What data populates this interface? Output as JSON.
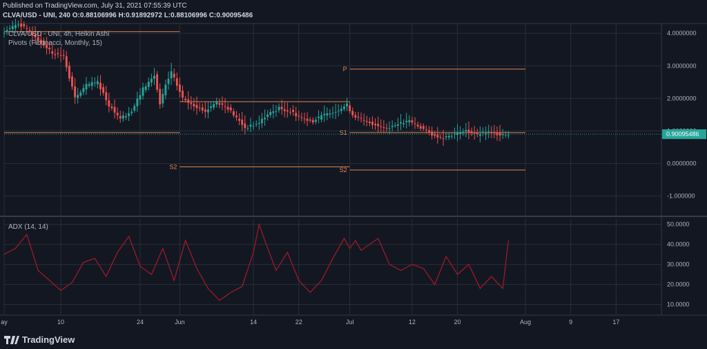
{
  "header": {
    "published": "Published on TradingView.com, July 31, 2021 07:55:39 UTC",
    "symbol_line": "CLVA/USD - UNI, 240",
    "o_label": "O:",
    "o": "0.88106996",
    "h_label": "H:",
    "h": "0.91892972",
    "l_label": "L:",
    "l": "0.88106996",
    "c_label": "C:",
    "c": "0.90095486"
  },
  "legend": {
    "series": "CLVA/USD - UNI, 4h, Heikin Ashi",
    "pivots": "Pivots (Fibonacci, Monthly, 15)",
    "adx": "ADX (14, 14)"
  },
  "colors": {
    "background": "#131722",
    "up": "#26a69a",
    "down": "#ef5350",
    "pivot": "#e08850",
    "adx": "#9c1b27",
    "grid": "#2a2e39",
    "text": "#b2b5be",
    "last_price_badge": "#26a69a"
  },
  "brand": "TradingView",
  "chart_data": [
    {
      "type": "candlestick",
      "title": "CLVA/USD - UNI, 4h, Heikin Ashi",
      "ylim": [
        -1.6,
        4.3
      ],
      "yticks": [
        "4.0000000",
        "3.0000000",
        "2.0000000",
        "1.0000000",
        "0.0000000",
        "-1.000000"
      ],
      "ytick_values": [
        4,
        3,
        2,
        1,
        0,
        -1
      ],
      "last_price": "0.90095486",
      "last_price_value": 0.90095486,
      "x_tick_labels": [
        "ay",
        "10",
        "24",
        "Jun",
        "14",
        "22",
        "Jul",
        "12",
        "20",
        "Aug",
        "9",
        "17"
      ],
      "x_tick_days": [
        0,
        10,
        24,
        31,
        44,
        52,
        61,
        72,
        80,
        92,
        100,
        108
      ],
      "x_range_days": [
        0,
        116
      ],
      "trend": [
        [
          0,
          4.0
        ],
        [
          3,
          4.3
        ],
        [
          6,
          3.9
        ],
        [
          9,
          3.4
        ],
        [
          11,
          3.3
        ],
        [
          13,
          2.0
        ],
        [
          15,
          2.4
        ],
        [
          17,
          2.5
        ],
        [
          19,
          1.8
        ],
        [
          21,
          1.4
        ],
        [
          23,
          1.6
        ],
        [
          25,
          2.3
        ],
        [
          27,
          2.7
        ],
        [
          28,
          1.8
        ],
        [
          29,
          2.4
        ],
        [
          30,
          2.8
        ],
        [
          31,
          2.4
        ],
        [
          32,
          2.0
        ],
        [
          34,
          1.8
        ],
        [
          36,
          1.6
        ],
        [
          38,
          1.9
        ],
        [
          40,
          1.7
        ],
        [
          42,
          1.3
        ],
        [
          43,
          1.1
        ],
        [
          45,
          1.2
        ],
        [
          47,
          1.5
        ],
        [
          49,
          1.7
        ],
        [
          51,
          1.6
        ],
        [
          53,
          1.4
        ],
        [
          55,
          1.3
        ],
        [
          57,
          1.5
        ],
        [
          59,
          1.6
        ],
        [
          61,
          1.8
        ],
        [
          62,
          1.5
        ],
        [
          64,
          1.3
        ],
        [
          66,
          1.2
        ],
        [
          68,
          1.1
        ],
        [
          70,
          1.2
        ],
        [
          72,
          1.3
        ],
        [
          74,
          1.1
        ],
        [
          76,
          0.9
        ],
        [
          78,
          0.8
        ],
        [
          80,
          0.9
        ],
        [
          82,
          1.0
        ],
        [
          84,
          0.9
        ],
        [
          86,
          0.95
        ],
        [
          88,
          0.9
        ],
        [
          89,
          0.9
        ]
      ],
      "pivots": [
        {
          "label": "",
          "value": 4.05,
          "from_day": 0,
          "to_day": 31
        },
        {
          "label": "",
          "value": 0.95,
          "from_day": 0,
          "to_day": 31
        },
        {
          "label": "S2",
          "value": -0.1,
          "from_day": 31,
          "to_day": 61
        },
        {
          "label": "",
          "value": 1.9,
          "from_day": 31,
          "to_day": 61
        },
        {
          "label": "P",
          "value": 2.9,
          "from_day": 61,
          "to_day": 92
        },
        {
          "label": "S1",
          "value": 0.95,
          "from_day": 61,
          "to_day": 92
        },
        {
          "label": "S2",
          "value": -0.2,
          "from_day": 61,
          "to_day": 92
        }
      ]
    },
    {
      "type": "line",
      "title": "ADX (14, 14)",
      "ylim": [
        5,
        53
      ],
      "yticks": [
        "50.0000",
        "40.0000",
        "30.0000",
        "20.0000",
        "10.0000"
      ],
      "ytick_values": [
        50,
        40,
        30,
        20,
        10
      ],
      "x": [
        0,
        2,
        4,
        6,
        8,
        10,
        12,
        14,
        16,
        18,
        20,
        22,
        24,
        26,
        28,
        30,
        32,
        34,
        36,
        38,
        40,
        42,
        44,
        45,
        46,
        48,
        50,
        52,
        54,
        56,
        58,
        60,
        61,
        62,
        63,
        64,
        66,
        68,
        70,
        72,
        74,
        76,
        78,
        80,
        82,
        84,
        86,
        88,
        89
      ],
      "y": [
        35,
        38,
        45,
        27,
        22,
        17,
        21,
        31,
        33,
        24,
        36,
        44,
        29,
        25,
        38,
        22,
        42,
        28,
        18,
        12,
        16,
        19,
        36,
        50,
        42,
        27,
        36,
        22,
        16,
        22,
        33,
        43,
        38,
        42,
        37,
        39,
        43,
        30,
        27,
        30,
        28,
        20,
        34,
        25,
        30,
        18,
        24,
        18,
        42
      ]
    }
  ]
}
